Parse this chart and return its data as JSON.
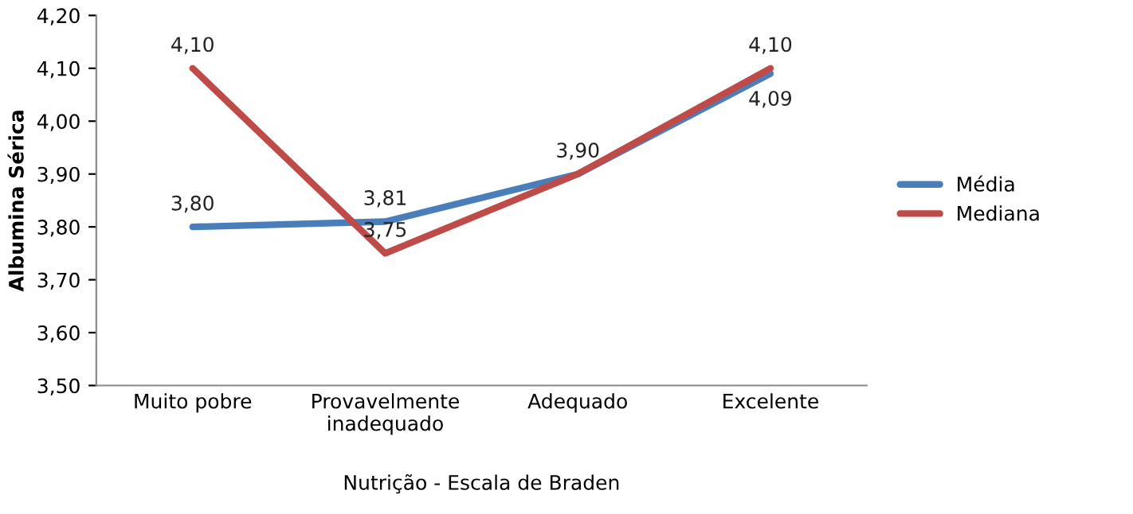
{
  "chart_data": {
    "type": "line",
    "xlabel": "Nutrição - Escala de Braden",
    "ylabel": "Albumina Sérica",
    "categories": [
      "Muito pobre",
      "Provavelmente\ninadequado",
      "Adequado",
      "Excelente"
    ],
    "series": [
      {
        "name": "Média",
        "color": "#4a7ebb",
        "values": [
          3.8,
          3.81,
          3.9,
          4.09
        ],
        "value_labels": [
          "3,80",
          "3,81",
          "3,90",
          "4,09"
        ]
      },
      {
        "name": "Mediana",
        "color": "#be4b48",
        "values": [
          4.1,
          3.75,
          3.9,
          4.1
        ],
        "value_labels": [
          "4,10",
          "3,75",
          null,
          "4,10"
        ]
      }
    ],
    "ylim": [
      3.5,
      4.2
    ],
    "yticks": [
      {
        "value": 3.5,
        "label": "3,50"
      },
      {
        "value": 3.6,
        "label": "3,60"
      },
      {
        "value": 3.7,
        "label": "3,70"
      },
      {
        "value": 3.8,
        "label": "3,80"
      },
      {
        "value": 3.9,
        "label": "3,90"
      },
      {
        "value": 4.0,
        "label": "4,00"
      },
      {
        "value": 4.1,
        "label": "4,10"
      },
      {
        "value": 4.2,
        "label": "4,20"
      }
    ],
    "grid": false,
    "legend": "right",
    "marker": "none",
    "line_style": "solid"
  }
}
